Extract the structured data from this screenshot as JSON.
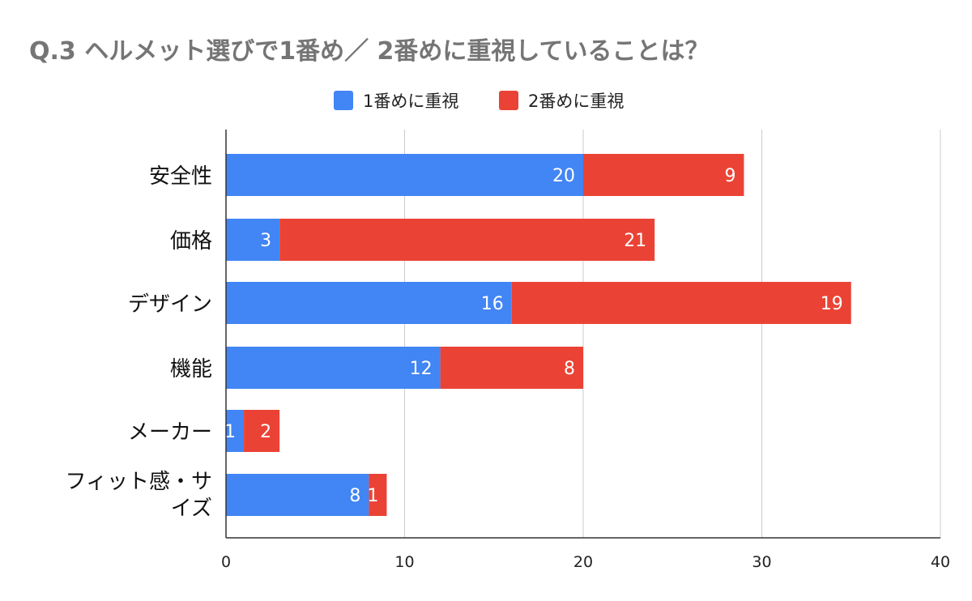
{
  "chart_data": {
    "type": "bar",
    "orientation": "horizontal",
    "stacked": true,
    "title": "Q.3 ヘルメット選びで1番め／ 2番めに重視していることは？",
    "categories": [
      "安全性",
      "価格",
      "デザイン",
      "機能",
      "メーカー",
      "フィット感・サイズ"
    ],
    "series": [
      {
        "name": "1番めに重視",
        "color": "#4285f4",
        "values": [
          20,
          3,
          16,
          12,
          1,
          8
        ]
      },
      {
        "name": "2番めに重視",
        "color": "#ea4335",
        "values": [
          9,
          21,
          19,
          8,
          2,
          1
        ]
      }
    ],
    "xlim": [
      0,
      40
    ],
    "xticks": [
      0,
      10,
      20,
      30,
      40
    ],
    "grid": true,
    "legend_position": "top-center"
  }
}
